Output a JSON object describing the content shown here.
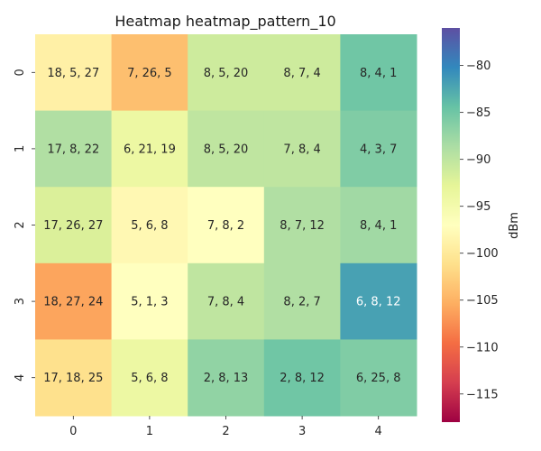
{
  "chart_data": {
    "type": "heatmap",
    "title": "Heatmap heatmap_pattern_10",
    "xlabel": "",
    "ylabel": "",
    "x_categories": [
      "0",
      "1",
      "2",
      "3",
      "4"
    ],
    "y_categories": [
      "0",
      "1",
      "2",
      "3",
      "4"
    ],
    "values": [
      [
        -99,
        -104,
        -91,
        -91,
        -85
      ],
      [
        -89,
        -94,
        -90,
        -90,
        -86
      ],
      [
        -92,
        -98,
        -97,
        -89,
        -88
      ],
      [
        -106,
        -97,
        -90,
        -89,
        -82
      ],
      [
        -101,
        -94,
        -87,
        -85,
        -86
      ]
    ],
    "annotations": [
      [
        "18, 5, 27",
        "7, 26, 5",
        "8, 5, 20",
        "8, 7, 4",
        "8, 4, 1"
      ],
      [
        "17, 8, 22",
        "6, 21, 19",
        "8, 5, 20",
        "7, 8, 4",
        "4, 3, 7"
      ],
      [
        "17, 26, 27",
        "5, 6, 8",
        "7, 8, 2",
        "8, 7, 12",
        "8, 4, 1"
      ],
      [
        "18, 27, 24",
        "5, 1, 3",
        "7, 8, 4",
        "8, 2, 7",
        "6, 8, 12"
      ],
      [
        "17, 18, 25",
        "5, 6, 8",
        "2, 8, 13",
        "2, 8, 12",
        "6, 25, 8"
      ]
    ],
    "colorbar": {
      "label": "dBm",
      "min": -118,
      "max": -76,
      "ticks": [
        -80,
        -85,
        -90,
        -95,
        -100,
        -105,
        -110,
        -115
      ],
      "tick_labels": [
        "−80",
        "−85",
        "−90",
        "−95",
        "−100",
        "−105",
        "−110",
        "−115"
      ],
      "colormap": "Spectral"
    }
  }
}
